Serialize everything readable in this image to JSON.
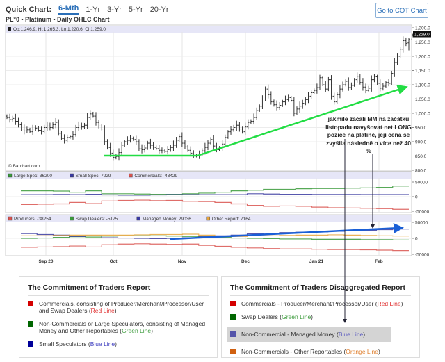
{
  "quick_chart": {
    "label": "Quick Chart:",
    "tabs": [
      "6-Mth",
      "1-Yr",
      "3-Yr",
      "5-Yr",
      "20-Yr"
    ],
    "active": "6-Mth",
    "cot_button": "Go to COT Chart"
  },
  "chart_title": "PL*0 - Platinum - Daily OHLC Chart",
  "ohlc_readout": "Op:1,246.9, Hi:1,265.3, Lo:1,220.6, Cl:1,259.0",
  "watermark": "© Barchart.com",
  "last_price_label": "1,259.0",
  "annotation": "jakmile začali MM na začátku listopadu  navyšovat net LONG pozice na platině, její cena se zvyšila následně o více než 40 %",
  "colors": {
    "red": "#d9534f",
    "green": "#3a9a3a",
    "blue": "#3a3aa0",
    "orange": "#e8a33a",
    "trend_green": "#22dd44",
    "arrow_blue": "#1a5fd6"
  },
  "chart_data": [
    {
      "type": "line",
      "subtype": "ohlc",
      "title": "PL*0 - Platinum - Daily OHLC Chart",
      "x_ticks": [
        "Sep 20",
        "Oct",
        "Nov",
        "Dec",
        "Jan 21",
        "Feb"
      ],
      "y_ticks": [
        "1,300.0",
        "1,250.0",
        "1,200.0",
        "1,150.0",
        "1,100.0",
        "1,050.0",
        "1,000.0",
        "950.0",
        "900.0",
        "850.0",
        "800.0"
      ],
      "ylim": [
        800,
        1300
      ],
      "grid": true,
      "last_bar": {
        "open": 1246.9,
        "high": 1265.3,
        "low": 1220.6,
        "close": 1259.0
      },
      "closes": [
        985,
        978,
        982,
        972,
        960,
        945,
        938,
        942,
        935,
        945,
        948,
        940,
        936,
        950,
        955,
        950,
        960,
        968,
        930,
        912,
        905,
        915,
        918,
        925,
        950,
        955,
        952,
        958,
        985,
        998,
        990,
        968,
        955,
        945,
        900,
        880,
        860,
        845,
        848,
        862,
        888,
        900,
        905,
        912,
        908,
        900,
        875,
        872,
        878,
        895,
        888,
        880,
        876,
        870,
        868,
        866,
        872,
        880,
        888,
        905,
        918,
        895,
        882,
        870,
        860,
        852,
        850,
        856,
        868,
        880,
        895,
        908,
        885,
        872,
        878,
        892,
        915,
        935,
        942,
        950,
        958,
        945,
        935,
        952,
        968,
        972,
        985,
        1010,
        1025,
        1050,
        1085,
        1065,
        1040,
        1030,
        1020,
        1028,
        1040,
        1048,
        1055,
        1045,
        1000,
        1015,
        1025,
        1035,
        1048,
        1060,
        1072,
        1080,
        1090,
        1125,
        1100,
        1085,
        1118,
        1060,
        1040,
        1065,
        1085,
        1100,
        1112,
        1090,
        1098,
        1118,
        1130,
        1108,
        1092,
        1080,
        1088,
        1118,
        1128,
        1105,
        1088,
        1095,
        1108,
        1105,
        1140,
        1178,
        1200,
        1225,
        1255,
        1245,
        1259
      ]
    },
    {
      "type": "line",
      "subtype": "step",
      "ylim": [
        -50000,
        50000
      ],
      "y_ticks": [
        "50000",
        "0",
        "-50000"
      ],
      "legend": [
        "Large Spec: 36200",
        "Small Spec: 7229",
        "Commercials: -43429"
      ],
      "series": [
        {
          "name": "Large Spec",
          "color": "green",
          "values": [
            20000,
            20000,
            19000,
            15000,
            20000,
            10000,
            10000,
            9000,
            8000,
            8000,
            10000,
            12000,
            15000,
            20000,
            22000,
            25000,
            25000,
            27000,
            28000,
            28000,
            29000,
            30000,
            32000,
            36200
          ]
        },
        {
          "name": "Small Spec",
          "color": "blue",
          "values": [
            7000,
            7000,
            7500,
            7000,
            8000,
            6000,
            5000,
            5000,
            6000,
            7000,
            7000,
            7000,
            7000,
            7000,
            10000,
            9000,
            8000,
            8000,
            7500,
            7500,
            7500,
            7229,
            7229,
            7229
          ]
        },
        {
          "name": "Commercials",
          "color": "red",
          "values": [
            -27000,
            -26000,
            -25000,
            -20000,
            -24000,
            -15000,
            -13000,
            -12000,
            -14000,
            -13000,
            -16000,
            -17000,
            -20000,
            -25000,
            -30000,
            -33000,
            -32000,
            -33000,
            -36000,
            -38000,
            -39000,
            -40000,
            -41000,
            -43429
          ]
        }
      ]
    },
    {
      "type": "line",
      "subtype": "step",
      "ylim": [
        -50000,
        50000
      ],
      "y_ticks": [
        "50000",
        "0",
        "-50000"
      ],
      "legend": [
        "Producers: -38254",
        "Swap Dealers: -5175",
        "Managed Money: 29036",
        "Other Report: 7164"
      ],
      "series": [
        {
          "name": "Producers",
          "color": "red",
          "values": [
            -28000,
            -27000,
            -26000,
            -24000,
            -27000,
            -20000,
            -18000,
            -17000,
            -18000,
            -19000,
            -18000,
            -22000,
            -25000,
            -28000,
            -30000,
            -32000,
            -33000,
            -33000,
            -34000,
            -35000,
            -35000,
            -36000,
            -37000,
            -38254
          ]
        },
        {
          "name": "Swap Dealers",
          "color": "green",
          "values": [
            0,
            1000,
            3000,
            5000,
            4000,
            7000,
            8000,
            8000,
            8000,
            7000,
            6000,
            5000,
            3000,
            1000,
            0,
            -1000,
            -2000,
            -2000,
            -3000,
            -3000,
            -3000,
            -4000,
            -4000,
            -5175
          ]
        },
        {
          "name": "Managed Money",
          "color": "blue",
          "values": [
            15000,
            12000,
            10000,
            6000,
            8000,
            2000,
            1000,
            0,
            -1000,
            0,
            2000,
            5000,
            8000,
            10000,
            14000,
            16000,
            18000,
            19000,
            20000,
            22000,
            23000,
            25000,
            27000,
            29036
          ]
        },
        {
          "name": "Other Report",
          "color": "orange",
          "values": [
            8000,
            8000,
            9000,
            10000,
            10000,
            10000,
            10000,
            11000,
            12000,
            12000,
            13000,
            10000,
            5000,
            6000,
            8000,
            8000,
            9000,
            10000,
            10000,
            11000,
            10000,
            9000,
            8000,
            7164
          ]
        }
      ]
    }
  ],
  "legend_left": {
    "title": "The Commitment of Traders Report",
    "items": [
      {
        "text": "Commercials, consisting of Producer/Merchant/Processor/User and Swap Dealers (",
        "tag": "Red Line",
        "close": ")",
        "color": "#d40000",
        "tag_color": "#e03030"
      },
      {
        "text": "Non-Commercials or Large Speculators, consisting of Managed Money and Other Reportables (",
        "tag": "Green Line",
        "close": ")",
        "color": "#006600",
        "tag_color": "#3a9a3a"
      },
      {
        "text": "Small Speculators (",
        "tag": "Blue Line",
        "close": ")",
        "color": "#000099",
        "tag_color": "#4040c0"
      }
    ]
  },
  "legend_right": {
    "title": "The Commitment of Traders Disaggregated Report",
    "items": [
      {
        "text": "Commercials - Producer/Merchant/Processor/User (",
        "tag": "Red Line",
        "close": ")",
        "color": "#d40000",
        "tag_color": "#e03030"
      },
      {
        "text": "Swap Dealers (",
        "tag": "Green Line",
        "close": ")",
        "color": "#006600",
        "tag_color": "#3a9a3a"
      },
      {
        "text": "Non-Commercial - Managed Money (",
        "tag": "Blue Line",
        "close": ")",
        "color": "#5555aa",
        "tag_color": "#6060c0"
      },
      {
        "text": "Non-Commercials - Other Reportables (",
        "tag": "Orange Line",
        "close": ")",
        "color": "#d06010",
        "tag_color": "#e08030"
      }
    ]
  }
}
